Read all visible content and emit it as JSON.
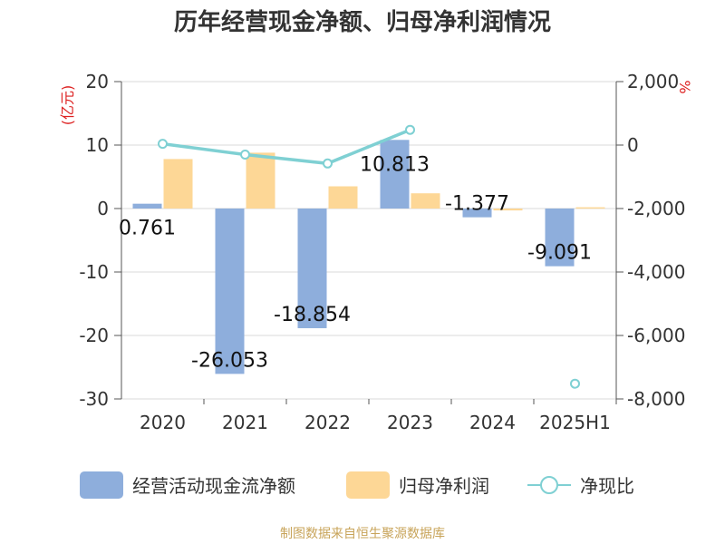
{
  "chart_data": {
    "type": "bar",
    "title": "历年经营现金净额、归母净利润情况",
    "categories": [
      "2020",
      "2021",
      "2022",
      "2023",
      "2024",
      "2025H1"
    ],
    "left_axis": {
      "unit": "(亿元)",
      "ticks": [
        "20",
        "10",
        "0",
        "-10",
        "-20",
        "-30"
      ],
      "ylim": [
        -30,
        20
      ]
    },
    "right_axis": {
      "unit": "%",
      "ticks": [
        "2,000",
        "0",
        "-2,000",
        "-4,000",
        "-6,000",
        "-8,000"
      ],
      "ylim": [
        -8000,
        2000
      ]
    },
    "series": [
      {
        "name": "经营活动现金流净额",
        "type": "bar",
        "axis": "left",
        "color": "#8eaedc",
        "values": [
          0.761,
          -26.053,
          -18.854,
          10.813,
          -1.377,
          -9.091
        ],
        "labels": [
          "0.761",
          "-26.053",
          "-18.854",
          "10.813",
          "-1.377",
          "-9.091"
        ]
      },
      {
        "name": "归母净利润",
        "type": "bar",
        "axis": "left",
        "color": "#fdd796",
        "values": [
          7.8,
          8.8,
          3.5,
          2.4,
          -0.3,
          0.2
        ]
      },
      {
        "name": "净现比",
        "type": "line",
        "axis": "right",
        "color": "#7fd0d3",
        "values": [
          40,
          -300,
          -580,
          480,
          null,
          -7520
        ]
      }
    ],
    "grid": true
  },
  "legend": {
    "cash_flow": "经营活动现金流净额",
    "net_profit": "归母净利润",
    "ratio": "净现比"
  },
  "source": "制图数据来自恒生聚源数据库"
}
